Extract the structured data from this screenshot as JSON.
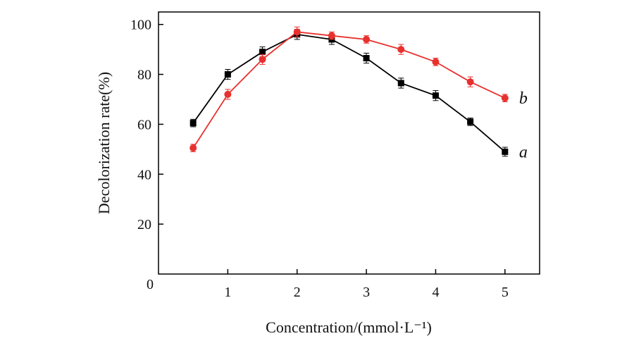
{
  "chart_data": {
    "type": "line",
    "title": "",
    "xlabel": "Concentration/(mmol·L⁻¹)",
    "ylabel": "Decolorization rate(%)",
    "xlim": [
      0,
      5.5
    ],
    "ylim": [
      0,
      105
    ],
    "xticks": [
      1,
      2,
      3,
      4,
      5
    ],
    "yticks": [
      20,
      40,
      60,
      80,
      100
    ],
    "origin_label": "0",
    "grid": false,
    "legend": "inline labels at right end of each series",
    "series": [
      {
        "name": "a",
        "color": "#000000",
        "marker": "square",
        "x": [
          0.5,
          1,
          1.5,
          2,
          2.5,
          3,
          3.5,
          4,
          4.5,
          5
        ],
        "values": [
          60.5,
          80,
          89,
          96,
          94,
          86.5,
          76.5,
          71.5,
          61,
          49
        ],
        "errors": [
          1.5,
          2,
          2,
          2,
          2,
          2,
          2,
          2,
          1.5,
          1.8
        ]
      },
      {
        "name": "b",
        "color": "#e8312e",
        "marker": "circle",
        "x": [
          0.5,
          1,
          1.5,
          2,
          2.5,
          3,
          3.5,
          4,
          4.5,
          5
        ],
        "values": [
          50.5,
          72,
          86,
          97,
          95.5,
          94,
          90,
          85,
          77,
          70.5
        ],
        "errors": [
          1.5,
          2,
          2,
          2,
          1.5,
          1.5,
          2,
          1.5,
          2,
          1.5
        ]
      }
    ]
  }
}
